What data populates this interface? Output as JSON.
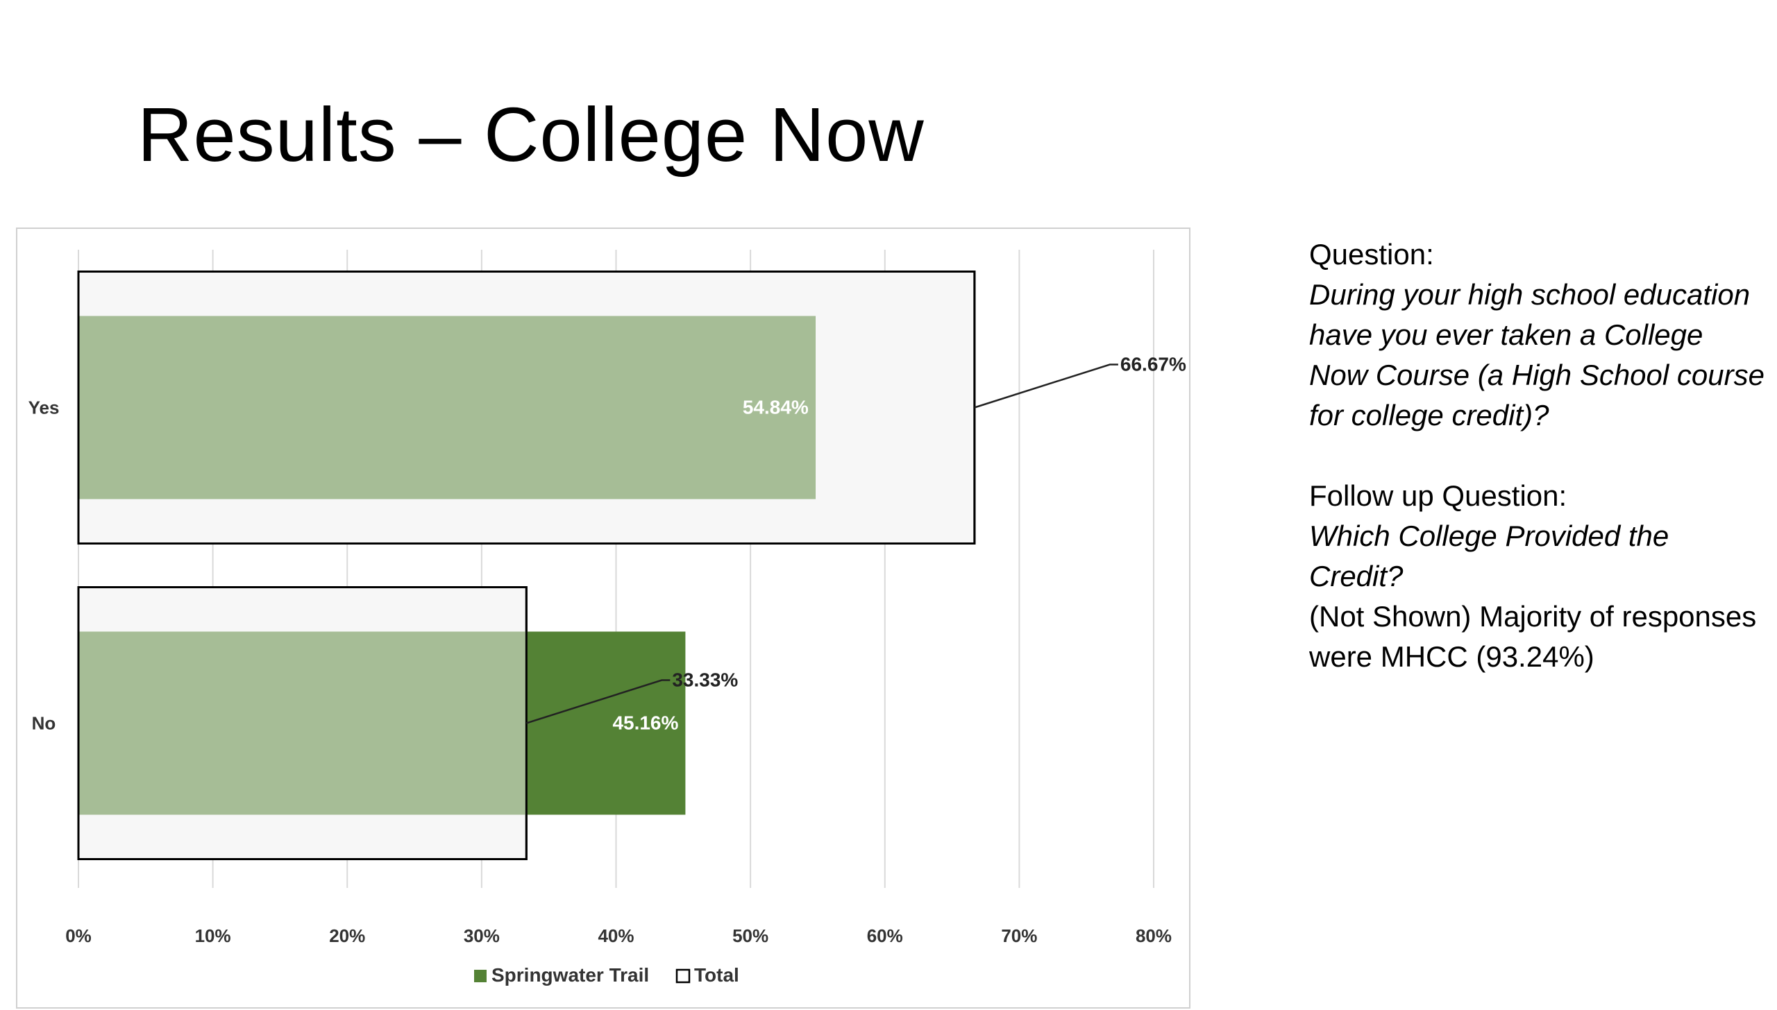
{
  "slide": {
    "title": "Results – College Now"
  },
  "side_panel": {
    "question_label": "Question:",
    "question_text": "During your high school education have you ever taken a College Now Course (a High School course for college credit)?",
    "followup_label": "Follow up Question:",
    "followup_text": "Which College Provided the Credit?",
    "note": "(Not Shown) Majority of responses were MHCC (93.24%)"
  },
  "chart_data": {
    "type": "bar",
    "orientation": "horizontal",
    "categories": [
      "Yes",
      "No"
    ],
    "series": [
      {
        "name": "Springwater Trail",
        "values": [
          54.84,
          45.16
        ],
        "labels": [
          "54.84%",
          "45.16%"
        ],
        "color": "#548235",
        "highlight_color": "#a6bd96"
      },
      {
        "name": "Total",
        "values": [
          66.67,
          33.33
        ],
        "labels": [
          "66.67%",
          "33.33%"
        ],
        "color": "#f7f7f7",
        "border_color": "#000000"
      }
    ],
    "xlim": [
      0,
      80
    ],
    "x_ticks": [
      "0%",
      "10%",
      "20%",
      "30%",
      "40%",
      "50%",
      "60%",
      "70%",
      "80%"
    ],
    "grid": true,
    "legend_position": "bottom"
  }
}
